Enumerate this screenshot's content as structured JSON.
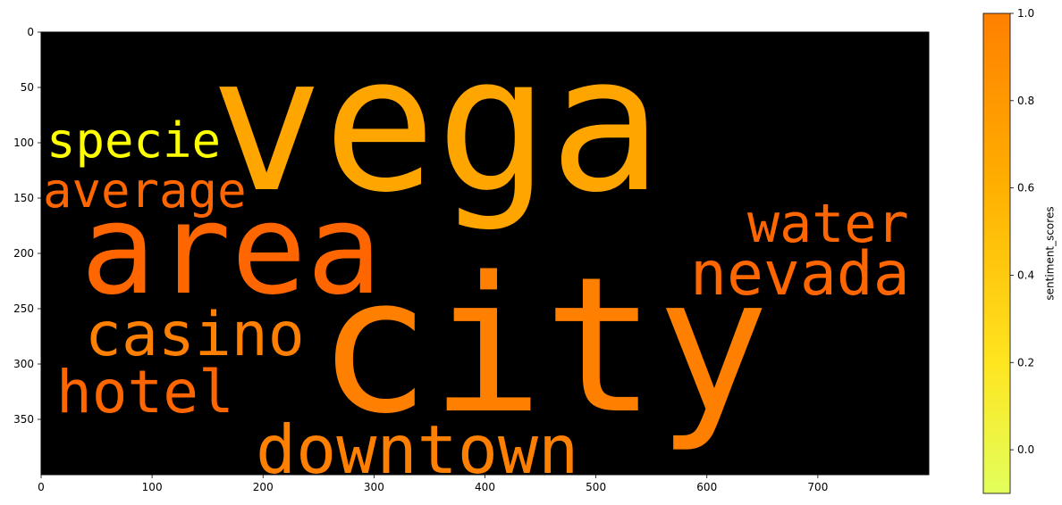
{
  "chart_data": {
    "type": "wordcloud",
    "background": "#000000",
    "x_ticks": [
      "0",
      "100",
      "200",
      "300",
      "400",
      "500",
      "600",
      "700"
    ],
    "y_ticks": [
      "0",
      "50",
      "100",
      "150",
      "200",
      "250",
      "300",
      "350"
    ],
    "xlim": [
      0,
      800
    ],
    "ylim": [
      400,
      0
    ],
    "words": [
      {
        "text": "vega",
        "color": "#FFA500"
      },
      {
        "text": "city",
        "color": "#FF7F00"
      },
      {
        "text": "area",
        "color": "#FF6600"
      },
      {
        "text": "downtown",
        "color": "#FF7F00"
      },
      {
        "text": "nevada",
        "color": "#FF6600"
      },
      {
        "text": "water",
        "color": "#FF6600"
      },
      {
        "text": "casino",
        "color": "#FF7F00"
      },
      {
        "text": "hotel",
        "color": "#FF6600"
      },
      {
        "text": "average",
        "color": "#FF6600"
      },
      {
        "text": "specie",
        "color": "#FFFF00"
      }
    ],
    "colorbar": {
      "label": "sentiment_scores",
      "ticks": [
        "0.0",
        "0.2",
        "0.4",
        "0.6",
        "0.8",
        "1.0"
      ],
      "tick_values": [
        0.0,
        0.2,
        0.4,
        0.6,
        0.8,
        1.0
      ],
      "range": [
        -0.1,
        1.0
      ],
      "stops": [
        {
          "value": -0.1,
          "color": "#E2FF5C"
        },
        {
          "value": 0.2,
          "color": "#FFE520"
        },
        {
          "value": 0.6,
          "color": "#FFB000"
        },
        {
          "value": 1.0,
          "color": "#FF8000"
        }
      ]
    }
  }
}
